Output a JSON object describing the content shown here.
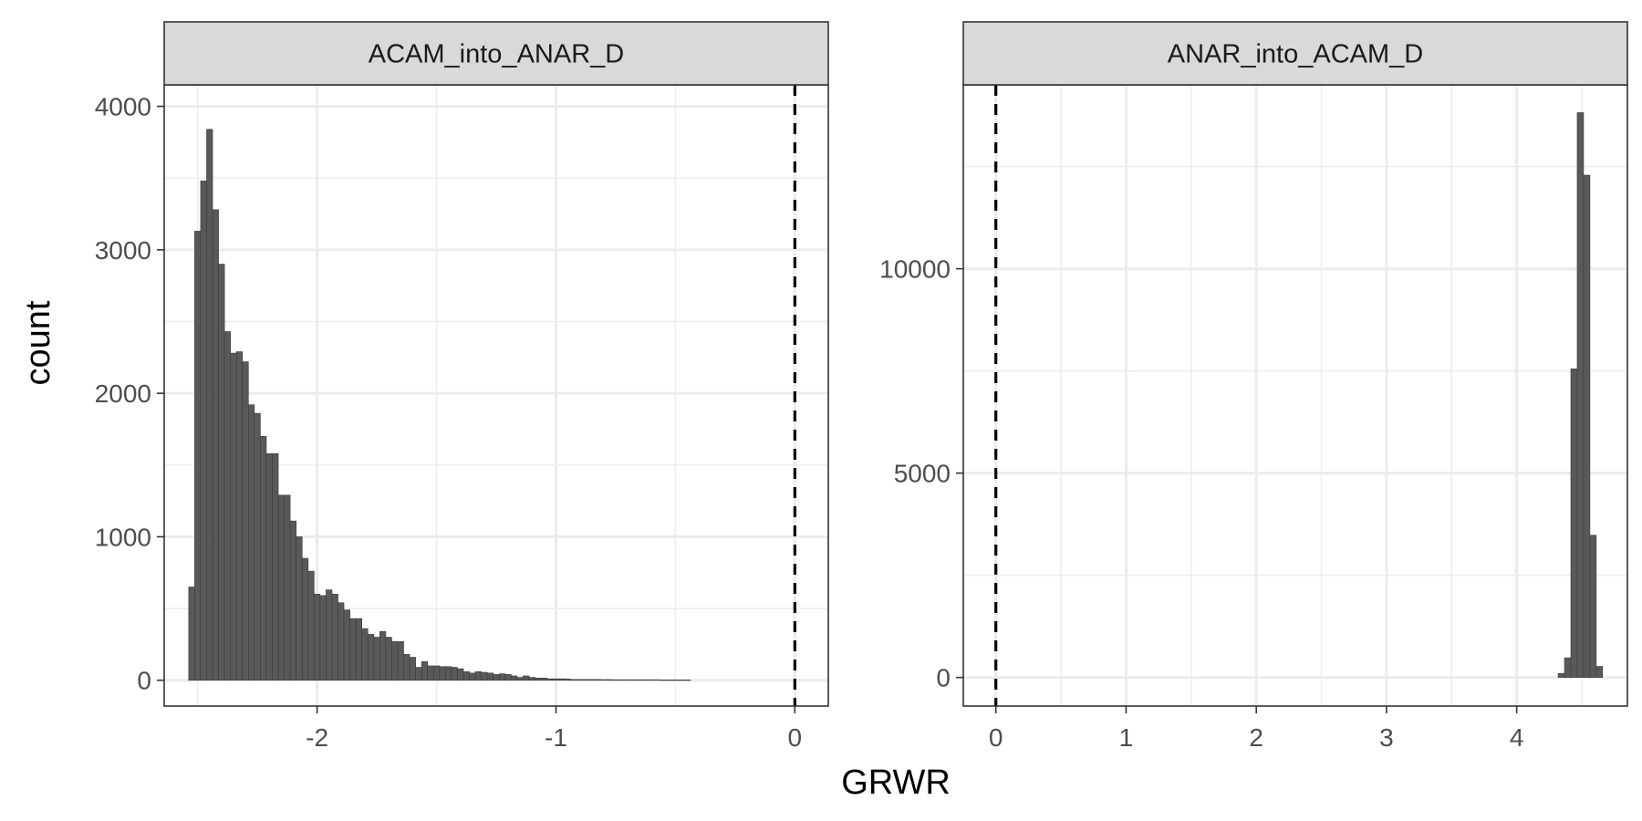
{
  "chart_data": {
    "type": "bar",
    "xlabel": "GRWR",
    "ylabel": "count",
    "reference_line": {
      "x": 0,
      "style": "dashed",
      "color": "#000000"
    },
    "colors": {
      "bar": "#595959",
      "bar_edge": "#3a3a3a",
      "panel_border": "#333333",
      "strip_bg": "#d9d9d9",
      "grid": "#ebebeb"
    },
    "grid": true,
    "panels": [
      {
        "strip": "ACAM_into_ANAR_D",
        "xlim": [
          -2.64,
          0.14
        ],
        "ylim": [
          -180,
          4150
        ],
        "x_ticks": [
          -2,
          -1,
          0
        ],
        "x_tick_labels": [
          "-2",
          "-1",
          "0"
        ],
        "y_ticks": [
          0,
          1000,
          2000,
          3000,
          4000
        ],
        "y_tick_labels": [
          "0",
          "1000",
          "2000",
          "3000",
          "4000"
        ],
        "bin_width": 0.025,
        "bin_start": -2.525,
        "counts": [
          650,
          3130,
          3480,
          3840,
          3280,
          2900,
          2430,
          2280,
          2290,
          2220,
          1920,
          1860,
          1700,
          1580,
          1580,
          1290,
          1290,
          1110,
          1000,
          850,
          760,
          600,
          590,
          630,
          600,
          540,
          490,
          430,
          430,
          360,
          320,
          300,
          340,
          300,
          270,
          270,
          180,
          160,
          90,
          130,
          100,
          100,
          95,
          95,
          90,
          80,
          60,
          50,
          60,
          55,
          50,
          40,
          45,
          40,
          30,
          20,
          30,
          20,
          15,
          15,
          10,
          10,
          10,
          8,
          5,
          5,
          5,
          5,
          5,
          4,
          4,
          3,
          3,
          3,
          3,
          3,
          3,
          3,
          3,
          2,
          2,
          2,
          2,
          2
        ]
      },
      {
        "strip": "ANAR_into_ACAM_D",
        "xlim": [
          -0.25,
          4.85
        ],
        "ylim": [
          -700,
          14500
        ],
        "x_ticks": [
          0,
          1,
          2,
          3,
          4
        ],
        "x_tick_labels": [
          "0",
          "1",
          "2",
          "3",
          "4"
        ],
        "y_ticks": [
          0,
          5000,
          10000
        ],
        "y_tick_labels": [
          "0",
          "5000",
          "10000"
        ],
        "bin_width": 0.0488,
        "bin_start": 4.3425,
        "counts": [
          100,
          480,
          7550,
          13820,
          12290,
          3480,
          270
        ]
      }
    ]
  }
}
